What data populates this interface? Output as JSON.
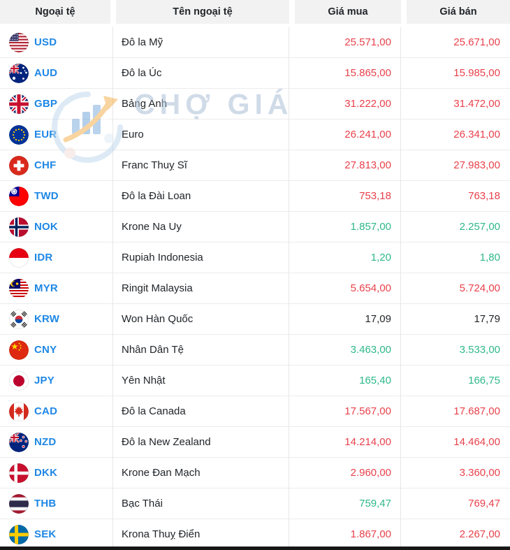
{
  "table": {
    "columns": [
      "Ngoại tệ",
      "Tên ngoại tệ",
      "Giá mua",
      "Giá bán"
    ],
    "rows": [
      {
        "code": "USD",
        "flag": "united-states",
        "name": "Đô la Mỹ",
        "buy": "25.571,00",
        "sell": "25.671,00",
        "buy_color": "red",
        "sell_color": "red"
      },
      {
        "code": "AUD",
        "flag": "australia",
        "name": "Đô la Úc",
        "buy": "15.865,00",
        "sell": "15.985,00",
        "buy_color": "red",
        "sell_color": "red"
      },
      {
        "code": "GBP",
        "flag": "united-kingdom",
        "name": "Bảng Anh",
        "buy": "31.222,00",
        "sell": "31.472,00",
        "buy_color": "red",
        "sell_color": "red"
      },
      {
        "code": "EUR",
        "flag": "european-union",
        "name": "Euro",
        "buy": "26.241,00",
        "sell": "26.341,00",
        "buy_color": "red",
        "sell_color": "red"
      },
      {
        "code": "CHF",
        "flag": "switzerland",
        "name": "Franc Thuỵ Sĩ",
        "buy": "27.813,00",
        "sell": "27.983,00",
        "buy_color": "red",
        "sell_color": "red"
      },
      {
        "code": "TWD",
        "flag": "taiwan",
        "name": "Đô la Đài Loan",
        "buy": "753,18",
        "sell": "763,18",
        "buy_color": "red",
        "sell_color": "red"
      },
      {
        "code": "NOK",
        "flag": "norway",
        "name": "Krone Na Uy",
        "buy": "1.857,00",
        "sell": "2.257,00",
        "buy_color": "green",
        "sell_color": "green"
      },
      {
        "code": "IDR",
        "flag": "indonesia",
        "name": "Rupiah Indonesia",
        "buy": "1,20",
        "sell": "1,80",
        "buy_color": "green",
        "sell_color": "green"
      },
      {
        "code": "MYR",
        "flag": "malaysia",
        "name": "Ringit Malaysia",
        "buy": "5.654,00",
        "sell": "5.724,00",
        "buy_color": "red",
        "sell_color": "red"
      },
      {
        "code": "KRW",
        "flag": "south-korea",
        "name": "Won Hàn Quốc",
        "buy": "17,09",
        "sell": "17,79",
        "buy_color": "dark",
        "sell_color": "dark"
      },
      {
        "code": "CNY",
        "flag": "china",
        "name": "Nhân Dân Tệ",
        "buy": "3.463,00",
        "sell": "3.533,00",
        "buy_color": "green",
        "sell_color": "green"
      },
      {
        "code": "JPY",
        "flag": "japan",
        "name": "Yên Nhật",
        "buy": "165,40",
        "sell": "166,75",
        "buy_color": "green",
        "sell_color": "green"
      },
      {
        "code": "CAD",
        "flag": "canada",
        "name": "Đô la Canada",
        "buy": "17.567,00",
        "sell": "17.687,00",
        "buy_color": "red",
        "sell_color": "red"
      },
      {
        "code": "NZD",
        "flag": "new-zealand",
        "name": "Đô la New Zealand",
        "buy": "14.214,00",
        "sell": "14.464,00",
        "buy_color": "red",
        "sell_color": "red"
      },
      {
        "code": "DKK",
        "flag": "denmark",
        "name": "Krone Đan Mạch",
        "buy": "2.960,00",
        "sell": "3.360,00",
        "buy_color": "red",
        "sell_color": "red"
      },
      {
        "code": "THB",
        "flag": "thailand",
        "name": "Bạc Thái",
        "buy": "759,47",
        "sell": "769,47",
        "buy_color": "green",
        "sell_color": "red"
      },
      {
        "code": "SEK",
        "flag": "sweden",
        "name": "Krona Thuỵ Điển",
        "buy": "1.867,00",
        "sell": "2.267,00",
        "buy_color": "red",
        "sell_color": "red"
      }
    ]
  },
  "watermark": {
    "text": "CHỢ GIÁ"
  },
  "colors": {
    "red": "#e8414b",
    "green": "#2eb88a",
    "dark": "#212529",
    "code_blue": "#1e87e5",
    "header_bg": "#f2f2f2"
  }
}
